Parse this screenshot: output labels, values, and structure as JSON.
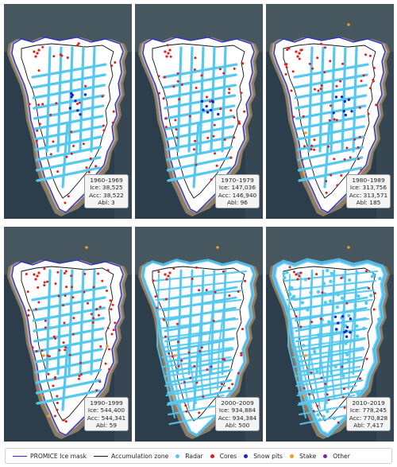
{
  "colors": {
    "ice_mask": "#2b2bd6",
    "accumulation": "#111111",
    "radar": "#55c8f0",
    "cores": "#e01c1c",
    "snow_pits": "#1a22c8",
    "stake": "#f29a26",
    "other": "#7b2aa8"
  },
  "panels": [
    {
      "period": "1960–1969",
      "ice": "Ice: 38,525",
      "acc": "Acc: 38,522",
      "abl": "Abl: 3",
      "radar_level": 1,
      "cores_level": 1,
      "pits": true,
      "stake_level": 0
    },
    {
      "period": "1970–1979",
      "ice": "Ice: 147,036",
      "acc": "Acc: 146,940",
      "abl": "Abl: 96",
      "radar_level": 1,
      "cores_level": 1,
      "pits": true,
      "stake_level": 0
    },
    {
      "period": "1980–1989",
      "ice": "Ice: 313,756",
      "acc": "Acc: 313,571",
      "abl": "Abl: 185",
      "radar_level": 1,
      "cores_level": 2,
      "pits": true,
      "stake_level": 1
    },
    {
      "period": "1990–1999",
      "ice": "Ice: 544,400",
      "acc": "Acc: 544,341",
      "abl": "Abl: 59",
      "radar_level": 1,
      "cores_level": 3,
      "pits": false,
      "stake_level": 1
    },
    {
      "period": "2000–2009",
      "ice": "Ice: 934,884",
      "acc": "Acc: 934,384",
      "abl": "Abl: 500",
      "radar_level": 2,
      "cores_level": 2,
      "pits": false,
      "stake_level": 1
    },
    {
      "period": "2010–2019",
      "ice": "Ice: 778,245",
      "acc": "Acc: 770,828",
      "abl": "Abl: 7,417",
      "radar_level": 3,
      "cores_level": 1,
      "pits": true,
      "stake_level": 1
    }
  ],
  "legend": [
    {
      "kind": "line",
      "label": "PROMICE Ice mask",
      "color_key": "ice_mask"
    },
    {
      "kind": "line",
      "label": "Accumulation zone",
      "color_key": "accumulation"
    },
    {
      "kind": "dot",
      "label": "Radar",
      "color_key": "radar"
    },
    {
      "kind": "dot",
      "label": "Cores",
      "color_key": "cores"
    },
    {
      "kind": "dot",
      "label": "Snow pits",
      "color_key": "snow_pits"
    },
    {
      "kind": "dot",
      "label": "Stake",
      "color_key": "stake"
    },
    {
      "kind": "dot",
      "label": "Other",
      "color_key": "other"
    }
  ]
}
